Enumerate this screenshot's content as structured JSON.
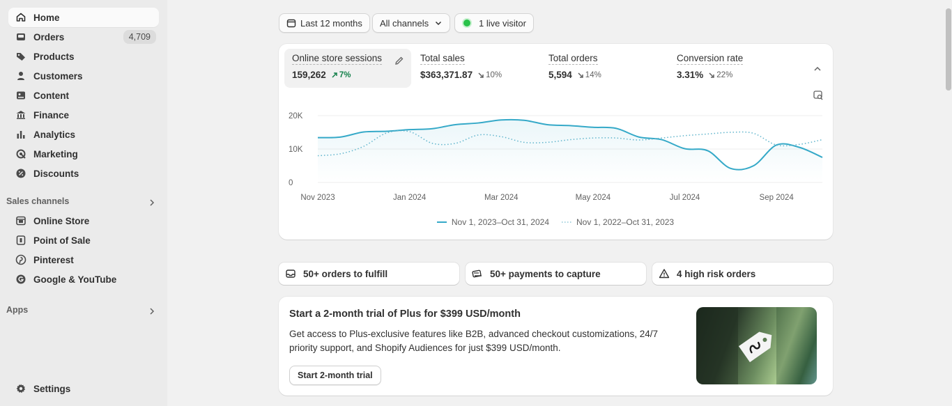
{
  "sidebar": {
    "nav": [
      {
        "label": "Home",
        "icon": "home-icon",
        "active": true
      },
      {
        "label": "Orders",
        "icon": "orders-icon",
        "badge": "4,709"
      },
      {
        "label": "Products",
        "icon": "tag-icon"
      },
      {
        "label": "Customers",
        "icon": "person-icon"
      },
      {
        "label": "Content",
        "icon": "content-icon"
      },
      {
        "label": "Finance",
        "icon": "bank-icon"
      },
      {
        "label": "Analytics",
        "icon": "bar-chart-icon"
      },
      {
        "label": "Marketing",
        "icon": "target-icon"
      },
      {
        "label": "Discounts",
        "icon": "discount-icon"
      }
    ],
    "sales_channels_title": "Sales channels",
    "sales_channels": [
      {
        "label": "Online Store",
        "icon": "store-icon"
      },
      {
        "label": "Point of Sale",
        "icon": "pos-icon"
      },
      {
        "label": "Pinterest",
        "icon": "pinterest-icon"
      },
      {
        "label": "Google & YouTube",
        "icon": "google-icon"
      }
    ],
    "apps_title": "Apps",
    "settings_label": "Settings"
  },
  "filters": {
    "date_range": "Last 12 months",
    "channels": "All channels",
    "live_visitors": "1 live visitor"
  },
  "metrics": [
    {
      "title": "Online store sessions",
      "value": "159,262",
      "change": "7%",
      "direction": "up",
      "active": true
    },
    {
      "title": "Total sales",
      "value": "$363,371.87",
      "change": "10%",
      "direction": "down"
    },
    {
      "title": "Total orders",
      "value": "5,594",
      "change": "14%",
      "direction": "down"
    },
    {
      "title": "Conversion rate",
      "value": "3.31%",
      "change": "22%",
      "direction": "down"
    }
  ],
  "chart_data": {
    "type": "line",
    "y_tick_labels": [
      "20K",
      "10K",
      "0"
    ],
    "ylim": [
      0,
      20000
    ],
    "x_tick_labels": [
      "Nov 2023",
      "Jan 2024",
      "Mar 2024",
      "May 2024",
      "Jul 2024",
      "Sep 2024"
    ],
    "x": [
      0,
      0.5,
      1,
      1.5,
      2,
      2.5,
      3,
      3.5,
      4,
      4.5,
      5,
      5.5,
      6,
      6.5,
      7,
      7.5,
      8,
      8.5,
      9,
      9.5,
      10,
      10.5,
      11
    ],
    "series": [
      {
        "name": "Nov 1, 2023–Oct 31, 2024",
        "color": "#35a9c8",
        "style": "solid",
        "values": [
          13400,
          13600,
          15100,
          15300,
          15800,
          16100,
          17300,
          17800,
          18700,
          18600,
          17300,
          17000,
          16500,
          16200,
          13600,
          12800,
          10100,
          9500,
          4200,
          5000,
          11200,
          10500,
          7500
        ]
      },
      {
        "name": "Nov 1, 2022–Oct 31, 2023",
        "color": "#35a9c8",
        "style": "dotted",
        "values": [
          8000,
          8600,
          10800,
          14800,
          15200,
          11700,
          11700,
          14200,
          13700,
          12000,
          12000,
          12800,
          13300,
          13300,
          12700,
          13300,
          14000,
          14500,
          15000,
          14700,
          11200,
          11400,
          12800
        ]
      }
    ],
    "legend_position": "bottom"
  },
  "tasks": [
    {
      "label": "50+ orders to fulfill",
      "icon": "inbox-icon"
    },
    {
      "label": "50+ payments to capture",
      "icon": "payment-icon"
    },
    {
      "label": "4 high risk orders",
      "icon": "warning-icon"
    }
  ],
  "promo": {
    "title": "Start a 2-month trial of Plus for $399 USD/month",
    "description": "Get access to Plus-exclusive features like B2B, advanced checkout customizations, 24/7 priority support, and Shopify Audiences for just $399 USD/month.",
    "button": "Start 2-month trial"
  },
  "colors": {
    "accent": "#35a9c8",
    "positive": "#14804a",
    "live": "#29c24a"
  }
}
